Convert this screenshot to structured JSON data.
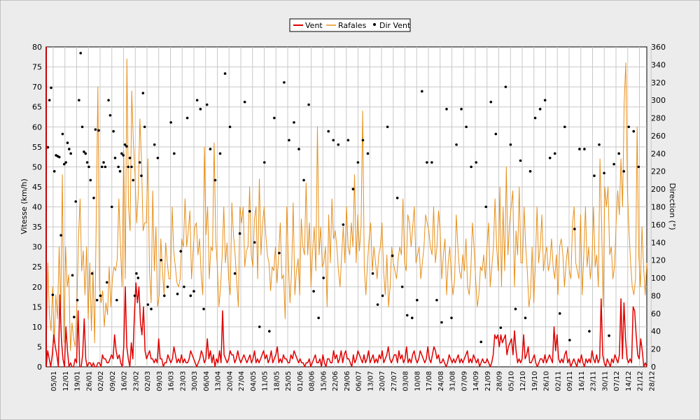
{
  "chart_data": {
    "type": "line",
    "title": "",
    "ylabel": "Vitesse (km/h)",
    "y2label": "Direction (°)",
    "ylim": [
      0,
      80
    ],
    "y2lim": [
      0,
      360
    ],
    "yticks": [
      0,
      5,
      10,
      15,
      20,
      25,
      30,
      35,
      40,
      45,
      50,
      55,
      60,
      65,
      70,
      75,
      80
    ],
    "y2ticks": [
      0,
      20,
      40,
      60,
      80,
      100,
      120,
      140,
      160,
      180,
      200,
      220,
      240,
      260,
      280,
      300,
      320,
      340,
      360
    ],
    "xtick_labels": [
      "05/01",
      "12/01",
      "19/01",
      "26/01",
      "02/02",
      "09/02",
      "16/02",
      "23/02",
      "02/03",
      "09/03",
      "16/03",
      "23/03",
      "30/03",
      "06/04",
      "13/04",
      "20/04",
      "27/04",
      "04/05",
      "11/05",
      "18/05",
      "25/05",
      "01/06",
      "08/06",
      "15/06",
      "22/06",
      "29/06",
      "06/07",
      "13/07",
      "20/07",
      "27/07",
      "03/08",
      "10/08",
      "17/08",
      "24/08",
      "31/08",
      "07/09",
      "14/09",
      "21/09",
      "28/09",
      "05/10",
      "12/10",
      "19/10",
      "26/10",
      "02/11",
      "09/11",
      "16/11",
      "23/11",
      "30/11",
      "07/12",
      "14/12",
      "21/12",
      "28/12"
    ],
    "grid": true,
    "legend_position": "top-center",
    "colors": {
      "vent": "#e00000",
      "rafales": "#e8901a",
      "dir": "#000000",
      "background": "#ececec",
      "plot": "#ffffff",
      "grid": "#c8c8c8"
    },
    "series": [
      {
        "name": "Vent",
        "kind": "line",
        "axis": "left",
        "values": [
          0,
          4,
          2,
          0,
          3,
          8,
          5,
          3,
          0,
          18,
          7,
          2,
          0,
          10,
          4,
          0,
          1,
          0,
          0,
          2,
          1,
          14,
          0,
          0,
          3,
          12,
          2,
          0,
          1,
          1,
          0,
          1,
          0,
          0,
          1,
          1,
          0,
          3,
          2,
          2,
          1,
          1,
          2,
          3,
          2,
          8,
          4,
          2,
          3,
          1,
          0,
          5,
          20,
          5,
          2,
          0,
          6,
          2,
          13,
          21,
          16,
          20,
          11,
          8,
          15,
          4,
          2,
          3,
          4,
          2,
          2,
          1,
          2,
          1,
          7,
          2,
          2,
          0,
          1,
          1,
          3,
          2,
          1,
          2,
          5,
          3,
          1,
          2,
          1,
          3,
          1,
          2,
          1,
          1,
          2,
          4,
          3,
          2,
          1,
          0,
          1,
          2,
          4,
          3,
          1,
          2,
          7,
          2,
          4,
          1,
          3,
          0,
          2,
          1,
          4,
          1,
          14,
          3,
          2,
          1,
          2,
          4,
          3,
          3,
          1,
          2,
          4,
          2,
          1,
          2,
          3,
          2,
          1,
          2,
          3,
          1,
          2,
          4,
          1,
          2,
          1,
          2,
          3,
          4,
          2,
          3,
          1,
          2,
          4,
          1,
          2,
          3,
          5,
          1,
          2,
          1,
          3,
          2,
          2,
          1,
          1,
          3,
          2,
          4,
          3,
          2,
          1,
          2,
          1,
          1,
          0,
          1,
          1,
          2,
          0,
          1,
          2,
          3,
          1,
          1,
          2,
          0,
          3,
          1,
          0,
          2,
          2,
          1,
          1,
          4,
          2,
          3,
          1,
          2,
          4,
          1,
          3,
          4,
          2,
          2,
          1,
          0,
          3,
          1,
          2,
          4,
          3,
          2,
          1,
          3,
          1,
          2,
          4,
          1,
          2,
          3,
          1,
          2,
          1,
          3,
          2,
          4,
          1,
          2,
          3,
          5,
          2,
          1,
          2,
          3,
          3,
          1,
          4,
          2,
          3,
          1,
          2,
          5,
          1,
          2,
          1,
          3,
          4,
          2,
          1,
          2,
          4,
          3,
          2,
          1,
          2,
          5,
          2,
          1,
          3,
          5,
          4,
          2,
          3,
          1,
          1,
          2,
          1,
          0,
          1,
          3,
          2,
          1,
          2,
          1,
          2,
          3,
          1,
          2,
          1,
          2,
          3,
          4,
          1,
          2,
          1,
          3,
          2,
          1,
          2,
          0,
          1,
          2,
          1,
          1,
          2,
          1,
          0,
          1,
          3,
          8,
          7,
          8,
          5,
          8,
          6,
          7,
          8,
          3,
          5,
          6,
          7,
          3,
          9,
          4,
          1,
          2,
          1,
          2,
          8,
          2,
          3,
          5,
          1,
          1,
          2,
          3,
          1,
          0,
          1,
          2,
          2,
          1,
          3,
          1,
          2,
          3,
          2,
          1,
          10,
          4,
          8,
          2,
          1,
          2,
          1,
          3,
          4,
          1,
          2,
          0,
          1,
          2,
          1,
          0,
          2,
          1,
          3,
          1,
          0,
          2,
          1,
          2,
          1,
          4,
          2,
          1,
          3,
          1,
          2,
          17,
          3,
          1,
          0,
          2,
          1,
          0,
          2,
          1,
          3,
          2,
          1,
          3,
          17,
          2,
          16,
          7,
          2,
          1,
          2,
          1,
          15,
          14,
          8,
          3,
          2,
          7,
          4,
          0,
          1,
          0
        ]
      },
      {
        "name": "Rafales",
        "kind": "line",
        "axis": "left",
        "values": [
          5,
          26,
          13,
          9,
          20,
          6,
          18,
          12,
          30,
          14,
          48,
          6,
          30,
          20,
          23,
          4,
          11,
          7,
          5,
          15,
          32,
          42,
          24,
          29,
          18,
          30,
          12,
          26,
          9,
          24,
          6,
          37,
          70,
          20,
          16,
          19,
          10,
          16,
          13,
          25,
          15,
          22,
          25,
          24,
          27,
          42,
          30,
          20,
          54,
          22,
          77,
          40,
          34,
          69,
          56,
          48,
          36,
          43,
          62,
          52,
          34,
          36,
          36,
          52,
          24,
          16,
          44,
          24,
          35,
          15,
          18,
          32,
          24,
          18,
          31,
          26,
          22,
          22,
          40,
          29,
          25,
          21,
          20,
          22,
          32,
          30,
          42,
          30,
          34,
          39,
          22,
          29,
          35,
          36,
          28,
          32,
          23,
          18,
          55,
          33,
          40,
          22,
          30,
          29,
          56,
          32,
          25,
          15,
          20,
          28,
          40,
          26,
          31,
          22,
          18,
          41,
          33,
          28,
          21,
          15,
          40,
          36,
          40,
          25,
          29,
          30,
          45,
          28,
          25,
          37,
          40,
          22,
          47,
          28,
          36,
          40,
          33,
          28,
          26,
          19,
          25,
          24,
          30,
          21,
          28,
          36,
          22,
          23,
          12,
          40,
          26,
          16,
          24,
          41,
          18,
          24,
          27,
          18,
          37,
          30,
          28,
          46,
          28,
          36,
          20,
          29,
          35,
          24,
          60,
          28,
          35,
          25,
          26,
          30,
          15,
          38,
          26,
          42,
          32,
          34,
          30,
          24,
          20,
          28,
          35,
          26,
          40,
          30,
          28,
          36,
          30,
          48,
          26,
          38,
          29,
          35,
          64,
          25,
          18,
          26,
          32,
          36,
          24,
          30,
          26,
          22,
          28,
          30,
          36,
          24,
          18,
          28,
          15,
          20,
          30,
          26,
          24,
          22,
          27,
          30,
          28,
          42,
          26,
          24,
          38,
          36,
          30,
          35,
          40,
          26,
          28,
          30,
          22,
          26,
          30,
          38,
          36,
          34,
          30,
          28,
          40,
          26,
          30,
          39,
          34,
          22,
          28,
          32,
          18,
          26,
          30,
          22,
          18,
          22,
          38,
          30,
          24,
          22,
          28,
          24,
          32,
          20,
          18,
          24,
          36,
          30,
          22,
          15,
          18,
          25,
          24,
          28,
          22,
          30,
          36,
          20,
          25,
          30,
          42,
          30,
          24,
          45,
          20,
          40,
          24,
          50,
          28,
          36,
          40,
          44,
          20,
          34,
          28,
          45,
          26,
          26,
          40,
          30,
          24,
          15,
          18,
          30,
          16,
          26,
          40,
          26,
          30,
          38,
          24,
          28,
          30,
          24,
          26,
          32,
          25,
          22,
          28,
          18,
          30,
          32,
          28,
          20,
          26,
          30,
          24,
          22,
          36,
          40,
          26,
          24,
          22,
          38,
          18,
          28,
          40,
          25,
          30,
          22,
          26,
          40,
          25,
          28,
          20,
          52,
          36,
          15,
          45,
          40,
          45,
          28,
          30,
          22,
          25,
          36,
          44,
          38,
          52,
          40,
          66,
          76,
          44,
          34,
          26,
          20,
          18,
          22,
          60,
          28,
          20,
          35,
          25,
          18,
          26
        ]
      },
      {
        "name": "Dir Vent",
        "kind": "scatter",
        "axis": "right",
        "x": [
          1,
          2,
          3,
          4,
          5,
          6,
          7,
          8,
          9,
          10,
          11,
          12,
          13,
          14,
          15,
          16,
          17,
          18,
          19,
          20,
          21,
          22,
          23,
          24,
          25,
          26,
          27,
          28,
          29,
          30,
          31,
          32,
          33,
          34,
          35,
          36,
          37,
          38,
          39,
          40,
          41,
          42,
          43,
          44,
          45,
          46,
          47,
          48,
          49,
          50,
          51,
          52,
          53,
          54,
          55,
          56,
          57,
          58,
          59,
          60,
          62,
          64,
          66,
          68,
          70,
          72,
          74,
          76,
          78,
          80,
          82,
          84,
          86,
          88,
          90,
          92,
          94,
          96,
          98,
          100,
          103,
          106,
          109,
          112,
          115,
          118,
          121,
          124,
          127,
          130,
          133,
          136,
          139,
          142,
          145,
          148,
          151,
          154,
          157,
          160,
          163,
          166,
          169,
          172,
          175,
          178,
          181,
          184,
          187,
          190,
          193,
          196,
          199,
          202,
          205,
          208,
          211,
          214,
          217,
          220,
          223,
          226,
          229,
          232,
          235,
          238,
          241,
          244,
          247,
          250,
          253,
          256,
          259,
          262,
          265,
          268,
          271,
          274,
          277,
          280,
          283,
          286,
          289,
          292,
          295,
          298,
          301,
          304,
          307,
          310,
          313,
          316,
          319,
          322,
          325,
          328,
          331,
          334,
          337,
          340,
          343,
          346,
          349,
          352,
          355,
          358,
          361
        ],
        "values": [
          247,
          300,
          314,
          81,
          220,
          238,
          237,
          236,
          148,
          262,
          228,
          230,
          252,
          245,
          240,
          103,
          56,
          186,
          75,
          300,
          353,
          270,
          242,
          240,
          230,
          225,
          210,
          105,
          190,
          267,
          75,
          266,
          80,
          225,
          230,
          225,
          95,
          300,
          283,
          180,
          265,
          235,
          75,
          225,
          220,
          240,
          238,
          250,
          248,
          225,
          235,
          225,
          210,
          80,
          105,
          100,
          230,
          215,
          308,
          270,
          70,
          65,
          250,
          235,
          120,
          80,
          90,
          275,
          240,
          82,
          130,
          90,
          280,
          80,
          85,
          300,
          290,
          65,
          295,
          245,
          210,
          240,
          330,
          270,
          105,
          150,
          298,
          175,
          140,
          45,
          230,
          40,
          280,
          128,
          320,
          255,
          275,
          245,
          210,
          295,
          85,
          55,
          100,
          265,
          255,
          250,
          160,
          255,
          200,
          230,
          255,
          240,
          105,
          70,
          80,
          270,
          125,
          190,
          90,
          58,
          55,
          75,
          310,
          230,
          230,
          75,
          50,
          290,
          55,
          250,
          290,
          270,
          225,
          230,
          28,
          180,
          298,
          262,
          44,
          315,
          250,
          65,
          232,
          55,
          220,
          280,
          290,
          300,
          235,
          240,
          60,
          270,
          30,
          155,
          245,
          245,
          40,
          215,
          250,
          218,
          35,
          228,
          240,
          220,
          270,
          265,
          225
        ]
      }
    ]
  }
}
